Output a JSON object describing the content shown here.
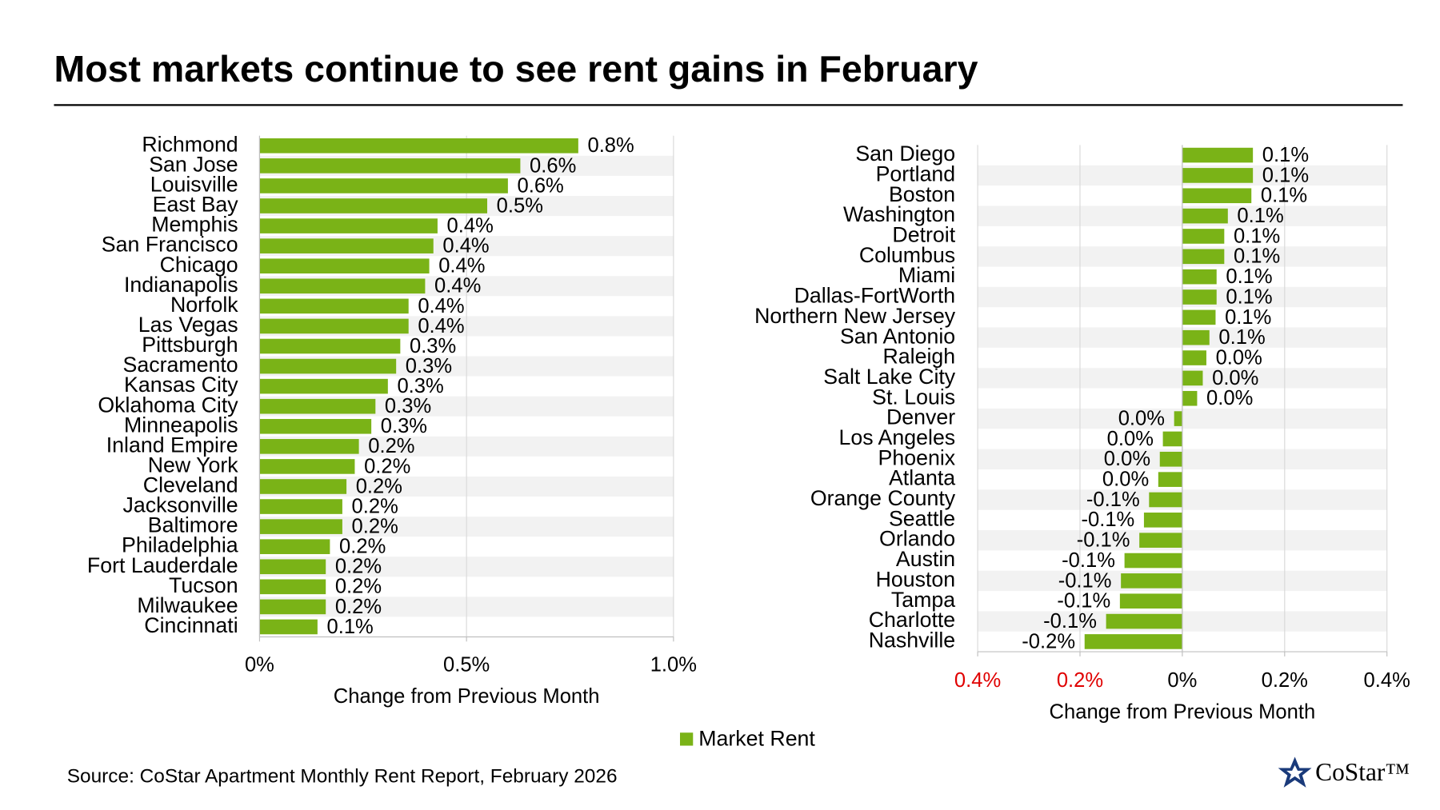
{
  "title": "Most markets continue to see rent gains in February",
  "source": "Source: CoStar Apartment Monthly Rent Report, February 2026",
  "logo": "CoStar™",
  "chart_data": [
    {
      "type": "bar",
      "orientation": "horizontal",
      "x_label": "Change from Previous Month",
      "categories": [
        "Richmond",
        "San Jose",
        "Louisville",
        "East Bay",
        "Memphis",
        "San Francisco",
        "Chicago",
        "Indianapolis",
        "Norfolk",
        "Las Vegas",
        "Pittsburgh",
        "Sacramento",
        "Kansas City",
        "Oklahoma City",
        "Minneapolis",
        "Inland Empire",
        "New York",
        "Cleveland",
        "Jacksonville",
        "Baltimore",
        "Philadelphia",
        "Fort Lauderdale",
        "Tucson",
        "Milwaukee",
        "Cincinnati"
      ],
      "series": [
        {
          "name": "Market Rent",
          "color": "#7ab317",
          "values": [
            0.77,
            0.63,
            0.6,
            0.55,
            0.43,
            0.42,
            0.41,
            0.4,
            0.36,
            0.36,
            0.34,
            0.33,
            0.31,
            0.28,
            0.27,
            0.24,
            0.23,
            0.21,
            0.2,
            0.2,
            0.17,
            0.16,
            0.16,
            0.16,
            0.14
          ],
          "value_labels": [
            "0.8%",
            "0.6%",
            "0.6%",
            "0.5%",
            "0.4%",
            "0.4%",
            "0.4%",
            "0.4%",
            "0.4%",
            "0.4%",
            "0.3%",
            "0.3%",
            "0.3%",
            "0.3%",
            "0.3%",
            "0.2%",
            "0.2%",
            "0.2%",
            "0.2%",
            "0.2%",
            "0.2%",
            "0.2%",
            "0.2%",
            "0.2%",
            "0.1%"
          ]
        }
      ],
      "xlim": [
        0,
        1
      ],
      "xticks": [
        {
          "value": 0,
          "label": "0%"
        },
        {
          "value": 0.5,
          "label": "0.5%"
        },
        {
          "value": 1,
          "label": "1.0%"
        }
      ],
      "grid": true,
      "banded_rows": true
    },
    {
      "type": "bar",
      "orientation": "horizontal",
      "x_label": "Change from Previous Month",
      "categories": [
        "San Diego",
        "Portland",
        "Boston",
        "Washington",
        "Detroit",
        "Columbus",
        "Miami",
        "Dallas-FortWorth",
        "Northern New Jersey",
        "San Antonio",
        "Raleigh",
        "Salt Lake City",
        "St. Louis",
        "Denver",
        "Los Angeles",
        "Phoenix",
        "Atlanta",
        "Orange County",
        "Seattle",
        "Orlando",
        "Austin",
        "Houston",
        "Tampa",
        "Charlotte",
        "Nashville"
      ],
      "series": [
        {
          "color": "#7ab317",
          "values": [
            0.138,
            0.138,
            0.135,
            0.089,
            0.082,
            0.082,
            0.067,
            0.067,
            0.065,
            0.053,
            0.047,
            0.04,
            0.029,
            -0.016,
            -0.038,
            -0.044,
            -0.047,
            -0.065,
            -0.075,
            -0.084,
            -0.113,
            -0.12,
            -0.122,
            -0.149,
            -0.191
          ],
          "value_labels": [
            "0.1%",
            "0.1%",
            "0.1%",
            "0.1%",
            "0.1%",
            "0.1%",
            "0.1%",
            "0.1%",
            "0.1%",
            "0.1%",
            "0.0%",
            "0.0%",
            "0.0%",
            "0.0%",
            "0.0%",
            "0.0%",
            "0.0%",
            "-0.1%",
            "-0.1%",
            "-0.1%",
            "-0.1%",
            "-0.1%",
            "-0.1%",
            "-0.1%",
            "-0.2%"
          ]
        }
      ],
      "xlim": [
        -0.4,
        0.4
      ],
      "xticks": [
        {
          "value": -0.4,
          "label": "0.4%"
        },
        {
          "value": -0.2,
          "label": "0.2%"
        },
        {
          "value": 0,
          "label": "0%"
        },
        {
          "value": 0.2,
          "label": "0.2%"
        },
        {
          "value": 0.4,
          "label": "0.4%"
        }
      ],
      "negative_tick_color": "#e00000",
      "grid": true,
      "banded_rows": true
    }
  ]
}
